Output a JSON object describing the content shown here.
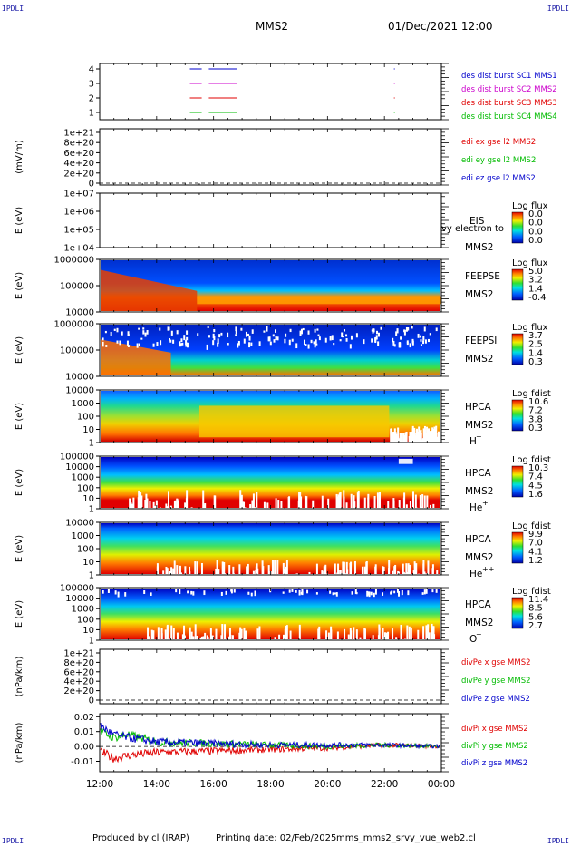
{
  "header": {
    "corner_tl": "IPDLI",
    "corner_tr": "IPDLI",
    "corner_bl": "IPDLI",
    "corner_br": "IPDLI",
    "spacecraft": "MMS2",
    "datetime": "01/Dec/2021 12:00"
  },
  "footer": {
    "produced": "Produced by cl (IRAP)",
    "printing": "Printing date: 02/Feb/2025",
    "file": "mms_mms2_srvy_vue_web2.cl"
  },
  "time_axis": {
    "ticks": [
      "12:00",
      "14:00",
      "16:00",
      "18:00",
      "20:00",
      "22:00",
      "00:00"
    ]
  },
  "colors": {
    "red": "#e00000",
    "green": "#00bb00",
    "blue": "#0000cc",
    "magenta": "#cc00cc"
  },
  "panels": {
    "burst": {
      "yticks": [
        "4",
        "3",
        "2",
        "1"
      ],
      "labels": [
        "des dist burst SC1 MMS1",
        "des dist burst SC2 MMS2",
        "des dist burst SC3 MMS3",
        "des dist burst SC4 MMS4"
      ]
    },
    "edi": {
      "ylabel": "(mV/m)",
      "yticks": [
        "1e+21",
        "8e+20",
        "6e+20",
        "4e+20",
        "2e+20",
        "0"
      ],
      "labels": [
        "edi ex gse l2 MMS2",
        "edi ey gse l2 MMS2",
        "edi ez gse l2 MMS2"
      ]
    },
    "eis": {
      "ylabel": "E (eV)",
      "yticks": [
        "1e+07",
        "1e+06",
        "1e+05",
        "1e+04"
      ],
      "name": "EIS",
      "name_overlap": "Ivy electron to",
      "sc": "MMS2",
      "cbar_title": "Log flux",
      "cbar_ticks": [
        "0.0",
        "0.0",
        "0.0",
        "0.0"
      ]
    },
    "feepse": {
      "ylabel": "E (eV)",
      "yticks": [
        "1000000",
        "100000",
        "10000"
      ],
      "name": "FEEPSE",
      "sc": "MMS2",
      "cbar_title": "Log flux",
      "cbar_ticks": [
        "5.0",
        "3.2",
        "1.4",
        "-0.4"
      ]
    },
    "feepsi": {
      "ylabel": "E (eV)",
      "yticks": [
        "1000000",
        "100000",
        "10000"
      ],
      "name": "FEEPSI",
      "sc": "MMS2",
      "cbar_title": "Log flux",
      "cbar_ticks": [
        "3.7",
        "2.5",
        "1.4",
        "0.3"
      ]
    },
    "hpca_h": {
      "ylabel": "E (eV)",
      "yticks": [
        "10000",
        "1000",
        "100",
        "10",
        "1"
      ],
      "name": "HPCA",
      "sc": "MMS2",
      "species": "H",
      "charge": "+",
      "cbar_title": "Log fdist",
      "cbar_ticks": [
        "10.6",
        "7.2",
        "3.8",
        "0.3"
      ]
    },
    "hpca_he": {
      "ylabel": "E (eV)",
      "yticks": [
        "100000",
        "10000",
        "1000",
        "100",
        "10",
        "1"
      ],
      "name": "HPCA",
      "sc": "MMS2",
      "species": "He",
      "charge": "+",
      "cbar_title": "Log fdist",
      "cbar_ticks": [
        "10.3",
        "7.4",
        "4.5",
        "1.6"
      ]
    },
    "hpca_he2": {
      "ylabel": "E (eV)",
      "yticks": [
        "10000",
        "1000",
        "100",
        "10",
        "1"
      ],
      "name": "HPCA",
      "sc": "MMS2",
      "species": "He",
      "charge": "++",
      "cbar_title": "Log fdist",
      "cbar_ticks": [
        "9.9",
        "7.0",
        "4.1",
        "1.2"
      ]
    },
    "hpca_o": {
      "ylabel": "E (eV)",
      "yticks": [
        "100000",
        "10000",
        "1000",
        "100",
        "10",
        "1"
      ],
      "name": "HPCA",
      "sc": "MMS2",
      "species": "O",
      "charge": "+",
      "cbar_title": "Log fdist",
      "cbar_ticks": [
        "11.4",
        "8.5",
        "5.6",
        "2.7"
      ]
    },
    "divpe": {
      "ylabel": "(nPa/km)",
      "yticks": [
        "1e+21",
        "8e+20",
        "6e+20",
        "4e+20",
        "2e+20",
        "0"
      ],
      "labels": [
        "divPe x gse MMS2",
        "divPe y gse MMS2",
        "divPe z gse MMS2"
      ]
    },
    "divpi": {
      "ylabel": "(nPa/km)",
      "yticks": [
        "0.02",
        "0.01",
        "0.00",
        "-0.01"
      ],
      "labels": [
        "divPi x gse MMS2",
        "divPi y gse MMS2",
        "divPi z gse MMS2"
      ]
    }
  },
  "chart_data": {
    "type": "line",
    "x_range": [
      "12:00",
      "00:00"
    ],
    "burst_intervals": [
      {
        "name": "des dist burst SC1 MMS1",
        "level": 4,
        "intervals": [
          [
            "15:10",
            "15:35"
          ],
          [
            "15:50",
            "16:50"
          ],
          [
            "22:20",
            "22:22"
          ]
        ]
      },
      {
        "name": "des dist burst SC2 MMS2",
        "level": 3,
        "intervals": [
          [
            "15:10",
            "15:35"
          ],
          [
            "15:50",
            "16:50"
          ],
          [
            "22:20",
            "22:22"
          ]
        ]
      },
      {
        "name": "des dist burst SC3 MMS3",
        "level": 2,
        "intervals": [
          [
            "15:10",
            "15:35"
          ],
          [
            "15:50",
            "16:50"
          ],
          [
            "22:20",
            "22:22"
          ]
        ]
      },
      {
        "name": "des dist burst SC4 MMS4",
        "level": 1,
        "intervals": [
          [
            "15:10",
            "15:35"
          ],
          [
            "15:50",
            "16:50"
          ],
          [
            "22:20",
            "22:22"
          ]
        ]
      }
    ],
    "divpi_ylim": [
      -0.017,
      0.022
    ],
    "divpi_series": [
      {
        "name": "divPi x gse MMS2",
        "x": [
          "12:00",
          "12:30",
          "13:00",
          "14:00",
          "16:00",
          "18:00",
          "20:00",
          "22:00",
          "00:00"
        ],
        "y": [
          -0.003,
          -0.008,
          -0.006,
          -0.004,
          -0.003,
          -0.002,
          -0.001,
          0.001,
          0.0
        ]
      },
      {
        "name": "divPi y gse MMS2",
        "x": [
          "12:00",
          "12:30",
          "13:00",
          "14:00",
          "16:00",
          "18:00",
          "20:00",
          "22:00",
          "00:00"
        ],
        "y": [
          0.01,
          0.006,
          0.008,
          0.003,
          0.002,
          0.001,
          0.0,
          0.001,
          0.0
        ]
      },
      {
        "name": "divPi z gse MMS2",
        "x": [
          "12:00",
          "12:30",
          "13:00",
          "14:00",
          "16:00",
          "18:00",
          "20:00",
          "22:00",
          "00:00"
        ],
        "y": [
          0.014,
          0.008,
          0.006,
          0.003,
          0.002,
          0.001,
          0.001,
          0.001,
          0.0
        ]
      }
    ]
  }
}
